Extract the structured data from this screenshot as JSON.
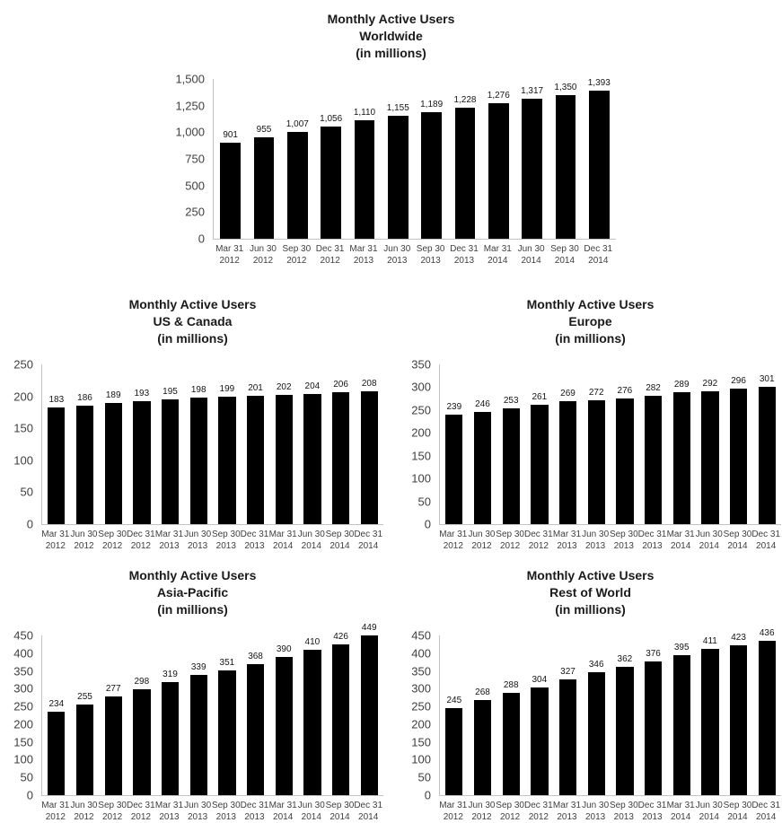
{
  "colors": {
    "bar": "#000000",
    "axis_line": "#c3c3c3",
    "axis_text": "#404040",
    "title_text": "#1a1a1a"
  },
  "chart_data": [
    {
      "type": "bar",
      "title": "Monthly Active Users",
      "subtitle": "Worldwide",
      "unit_label": "(in millions)",
      "categories": [
        "Mar 31 2012",
        "Jun 30 2012",
        "Sep 30 2012",
        "Dec 31 2012",
        "Mar 31 2013",
        "Jun 30 2013",
        "Sep 30 2013",
        "Dec 31 2013",
        "Mar 31 2014",
        "Jun 30 2014",
        "Sep 30 2014",
        "Dec 31 2014"
      ],
      "values": [
        901,
        955,
        1007,
        1056,
        1110,
        1155,
        1189,
        1228,
        1276,
        1317,
        1350,
        1393
      ],
      "value_labels": [
        "901",
        "955",
        "1,007",
        "1,056",
        "1,110",
        "1,155",
        "1,189",
        "1,228",
        "1,276",
        "1,317",
        "1,350",
        "1,393"
      ],
      "ylim": [
        0,
        1500
      ],
      "ytick_labels": [
        "1,500",
        "1,250",
        "1,000",
        "750",
        "500",
        "250",
        "0"
      ],
      "grid": false,
      "legend": false
    },
    {
      "type": "bar",
      "title": "Monthly Active Users",
      "subtitle": "US & Canada",
      "unit_label": "(in millions)",
      "categories": [
        "Mar 31 2012",
        "Jun 30 2012",
        "Sep 30 2012",
        "Dec 31 2012",
        "Mar 31 2013",
        "Jun 30 2013",
        "Sep 30 2013",
        "Dec 31 2013",
        "Mar 31 2014",
        "Jun 30 2014",
        "Sep 30 2014",
        "Dec 31 2014"
      ],
      "values": [
        183,
        186,
        189,
        193,
        195,
        198,
        199,
        201,
        202,
        204,
        206,
        208
      ],
      "value_labels": [
        "183",
        "186",
        "189",
        "193",
        "195",
        "198",
        "199",
        "201",
        "202",
        "204",
        "206",
        "208"
      ],
      "ylim": [
        0,
        250
      ],
      "ytick_labels": [
        "250",
        "200",
        "150",
        "100",
        "50",
        "0"
      ],
      "grid": false,
      "legend": false
    },
    {
      "type": "bar",
      "title": "Monthly Active Users",
      "subtitle": "Europe",
      "unit_label": "(in millions)",
      "categories": [
        "Mar 31 2012",
        "Jun 30 2012",
        "Sep 30 2012",
        "Dec 31 2012",
        "Mar 31 2013",
        "Jun 30 2013",
        "Sep 30 2013",
        "Dec 31 2013",
        "Mar 31 2014",
        "Jun 30 2014",
        "Sep 30 2014",
        "Dec 31 2014"
      ],
      "values": [
        239,
        246,
        253,
        261,
        269,
        272,
        276,
        282,
        289,
        292,
        296,
        301
      ],
      "value_labels": [
        "239",
        "246",
        "253",
        "261",
        "269",
        "272",
        "276",
        "282",
        "289",
        "292",
        "296",
        "301"
      ],
      "ylim": [
        0,
        350
      ],
      "ytick_labels": [
        "350",
        "300",
        "250",
        "200",
        "150",
        "100",
        "50",
        "0"
      ],
      "grid": false,
      "legend": false
    },
    {
      "type": "bar",
      "title": "Monthly Active Users",
      "subtitle": "Asia-Pacific",
      "unit_label": "(in millions)",
      "categories": [
        "Mar 31 2012",
        "Jun 30 2012",
        "Sep 30 2012",
        "Dec 31 2012",
        "Mar 31 2013",
        "Jun 30 2013",
        "Sep 30 2013",
        "Dec 31 2013",
        "Mar 31 2014",
        "Jun 30 2014",
        "Sep 30 2014",
        "Dec 31 2014"
      ],
      "values": [
        234,
        255,
        277,
        298,
        319,
        339,
        351,
        368,
        390,
        410,
        426,
        449
      ],
      "value_labels": [
        "234",
        "255",
        "277",
        "298",
        "319",
        "339",
        "351",
        "368",
        "390",
        "410",
        "426",
        "449"
      ],
      "ylim": [
        0,
        450
      ],
      "ytick_labels": [
        "450",
        "400",
        "350",
        "300",
        "250",
        "200",
        "150",
        "100",
        "50",
        "0"
      ],
      "grid": false,
      "legend": false
    },
    {
      "type": "bar",
      "title": "Monthly Active Users",
      "subtitle": "Rest of World",
      "unit_label": "(in millions)",
      "categories": [
        "Mar 31 2012",
        "Jun 30 2012",
        "Sep 30 2012",
        "Dec 31 2012",
        "Mar 31 2013",
        "Jun 30 2013",
        "Sep 30 2013",
        "Dec 31 2013",
        "Mar 31 2014",
        "Jun 30 2014",
        "Sep 30 2014",
        "Dec 31 2014"
      ],
      "values": [
        245,
        268,
        288,
        304,
        327,
        346,
        362,
        376,
        395,
        411,
        423,
        436
      ],
      "value_labels": [
        "245",
        "268",
        "288",
        "304",
        "327",
        "346",
        "362",
        "376",
        "395",
        "411",
        "423",
        "436"
      ],
      "ylim": [
        0,
        450
      ],
      "ytick_labels": [
        "450",
        "400",
        "350",
        "300",
        "250",
        "200",
        "150",
        "100",
        "50",
        "0"
      ],
      "grid": false,
      "legend": false
    }
  ]
}
